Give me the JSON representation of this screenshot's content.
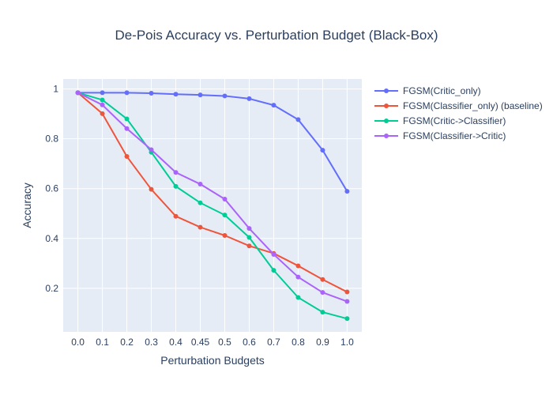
{
  "chart_data": {
    "type": "line",
    "title": "De-Pois Accuracy vs. Perturbation Budget (Black-Box)",
    "xlabel": "Perturbation Budgets",
    "ylabel": "Accuracy",
    "x": [
      "0.0",
      "0.1",
      "0.2",
      "0.3",
      "0.4",
      "0.45",
      "0.5",
      "0.6",
      "0.7",
      "0.8",
      "0.9",
      "1.0"
    ],
    "ylim": [
      0.025,
      1.04
    ],
    "yticks": [
      0.2,
      0.4,
      0.6,
      0.8,
      1
    ],
    "ytick_labels": [
      "0.2",
      "0.4",
      "0.6",
      "0.8",
      "1"
    ],
    "grid": true,
    "legend_position": "right",
    "series": [
      {
        "name": "FGSM(Critic_only)",
        "color": "#636efa",
        "values": [
          0.985,
          0.985,
          0.985,
          0.983,
          0.979,
          0.976,
          0.972,
          0.961,
          0.935,
          0.877,
          0.754,
          0.589
        ]
      },
      {
        "name": "FGSM(Classifier_only) (baseline)",
        "color": "#ef553b",
        "values": [
          0.985,
          0.901,
          0.729,
          0.597,
          0.489,
          0.445,
          0.412,
          0.37,
          0.34,
          0.29,
          0.235,
          0.185
        ]
      },
      {
        "name": "FGSM(Critic->Classifier)",
        "color": "#00cc96",
        "values": [
          0.985,
          0.956,
          0.88,
          0.746,
          0.609,
          0.543,
          0.494,
          0.404,
          0.272,
          0.163,
          0.104,
          0.078
        ]
      },
      {
        "name": "FGSM(Classifier->Critic)",
        "color": "#ab63fa",
        "values": [
          0.985,
          0.936,
          0.841,
          0.756,
          0.665,
          0.618,
          0.558,
          0.44,
          0.336,
          0.245,
          0.183,
          0.147
        ]
      }
    ]
  }
}
